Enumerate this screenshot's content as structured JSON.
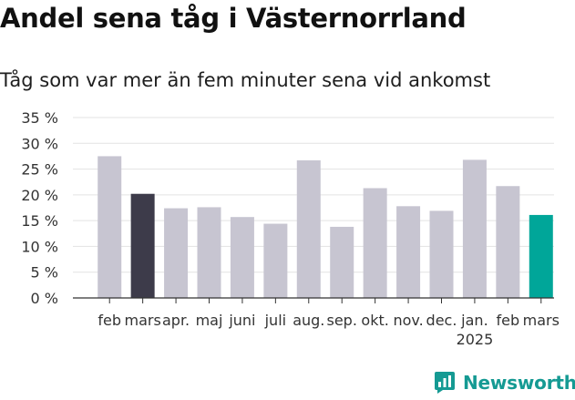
{
  "title": "Andel sena tåg i Västernorrland",
  "subtitle": "Tåg som var mer än fem minuter sena vid ankomst",
  "brand": {
    "name": "Newsworthy",
    "icon": "newsworthy-logo-icon",
    "color": "#159a93"
  },
  "chart_data": {
    "type": "bar",
    "categories": [
      "feb",
      "mars",
      "apr.",
      "maj",
      "juni",
      "juli",
      "aug.",
      "sep.",
      "okt.",
      "nov.",
      "dec.",
      "jan.",
      "feb",
      "mars"
    ],
    "year_labels": [
      "",
      "",
      "",
      "",
      "",
      "",
      "",
      "",
      "",
      "",
      "",
      "2025",
      "",
      ""
    ],
    "values": [
      27.5,
      20.2,
      17.4,
      17.6,
      15.7,
      14.4,
      26.7,
      13.8,
      21.3,
      17.8,
      16.9,
      26.8,
      21.7,
      16.1
    ],
    "highlight": {
      "1": "#3d3b4a",
      "13": "#00a699"
    },
    "bar_color": "#c7c5d1",
    "y_ticks": [
      "0 %",
      "5 %",
      "10 %",
      "15 %",
      "20 %",
      "25 %",
      "30 %",
      "35 %"
    ],
    "ylim": [
      0,
      35
    ],
    "grid": true,
    "xlabel": "",
    "ylabel": ""
  }
}
